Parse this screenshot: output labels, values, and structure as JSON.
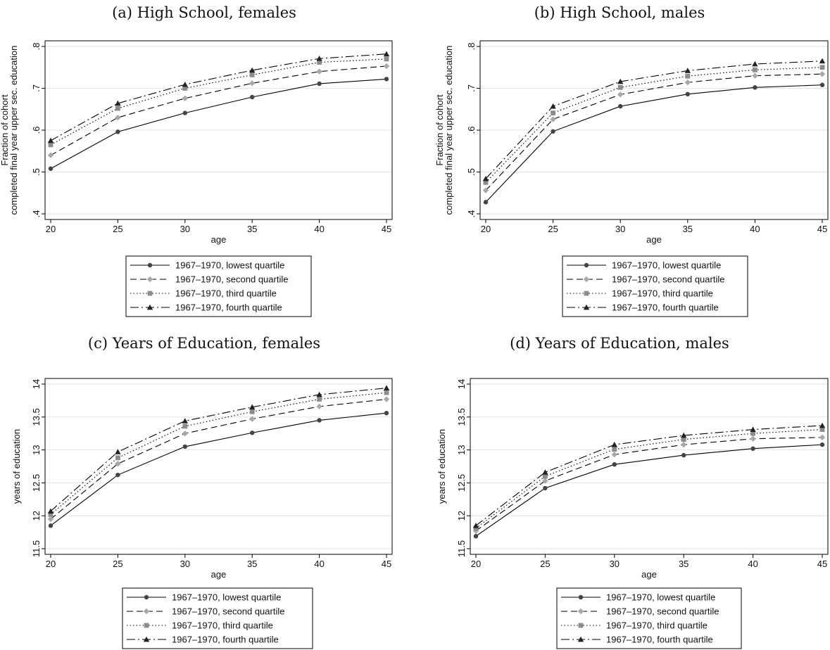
{
  "panels": [
    {
      "title": "(a) High School, females"
    },
    {
      "title": "(b) High School, males"
    },
    {
      "title": "(c) Years of Education, females"
    },
    {
      "title": "(d) Years of Education, males"
    }
  ],
  "chart_data": [
    {
      "type": "line",
      "title": "(a) High School, females",
      "xlabel": "age",
      "ylabel_lines": [
        "Fraction of cohort",
        "completed final year upper sec. education"
      ],
      "x": [
        20,
        25,
        30,
        35,
        40,
        45
      ],
      "xlim": [
        20,
        45
      ],
      "xticks": [
        "20",
        "25",
        "30",
        "35",
        "40",
        "45"
      ],
      "ylim": [
        0.4,
        0.8
      ],
      "yticks": [
        ".4",
        ".5",
        ".6",
        ".7",
        ".8"
      ],
      "ytick_values": [
        0.4,
        0.5,
        0.6,
        0.7,
        0.8
      ],
      "grid": true,
      "legend_position": "bottom",
      "series": [
        {
          "name": "1967–1970, lowest quartile",
          "values": [
            0.508,
            0.596,
            0.641,
            0.679,
            0.711,
            0.722
          ]
        },
        {
          "name": "1967–1970, second quartile",
          "values": [
            0.54,
            0.63,
            0.676,
            0.712,
            0.74,
            0.753
          ]
        },
        {
          "name": "1967–1970, third quartile",
          "values": [
            0.565,
            0.652,
            0.7,
            0.732,
            0.762,
            0.77
          ]
        },
        {
          "name": "1967–1970, fourth quartile",
          "values": [
            0.575,
            0.664,
            0.709,
            0.743,
            0.771,
            0.782
          ]
        }
      ]
    },
    {
      "type": "line",
      "title": "(b) High School, males",
      "xlabel": "age",
      "ylabel_lines": [
        "Fraction of cohort",
        "completed final year upper sec. education"
      ],
      "x": [
        20,
        25,
        30,
        35,
        40,
        45
      ],
      "xlim": [
        20,
        45
      ],
      "xticks": [
        "20",
        "25",
        "30",
        "35",
        "40",
        "45"
      ],
      "ylim": [
        0.4,
        0.8
      ],
      "yticks": [
        ".4",
        ".5",
        ".6",
        ".7",
        ".8"
      ],
      "ytick_values": [
        0.4,
        0.5,
        0.6,
        0.7,
        0.8
      ],
      "grid": true,
      "legend_position": "bottom",
      "series": [
        {
          "name": "1967–1970, lowest quartile",
          "values": [
            0.428,
            0.597,
            0.657,
            0.686,
            0.702,
            0.708
          ]
        },
        {
          "name": "1967–1970, second quartile",
          "values": [
            0.456,
            0.626,
            0.685,
            0.714,
            0.73,
            0.734
          ]
        },
        {
          "name": "1967–1970, third quartile",
          "values": [
            0.475,
            0.641,
            0.702,
            0.729,
            0.744,
            0.75
          ]
        },
        {
          "name": "1967–1970, fourth quartile",
          "values": [
            0.484,
            0.657,
            0.716,
            0.742,
            0.758,
            0.765
          ]
        }
      ]
    },
    {
      "type": "line",
      "title": "(c) Years of Education, females",
      "xlabel": "age",
      "ylabel_lines": [
        "years of education"
      ],
      "x": [
        20,
        25,
        30,
        35,
        40,
        45
      ],
      "xlim": [
        20,
        45
      ],
      "xticks": [
        "20",
        "25",
        "30",
        "35",
        "40",
        "45"
      ],
      "ylim": [
        11.5,
        14
      ],
      "yticks": [
        "11.5",
        "12",
        "12.5",
        "13",
        "13.5",
        "14"
      ],
      "ytick_values": [
        11.5,
        12,
        12.5,
        13,
        13.5,
        14
      ],
      "grid": true,
      "legend_position": "bottom",
      "series": [
        {
          "name": "1967–1970, lowest quartile",
          "values": [
            11.85,
            12.62,
            13.05,
            13.26,
            13.45,
            13.56
          ]
        },
        {
          "name": "1967–1970, second quartile",
          "values": [
            11.95,
            12.79,
            13.25,
            13.47,
            13.66,
            13.77
          ]
        },
        {
          "name": "1967–1970, third quartile",
          "values": [
            12.02,
            12.88,
            13.36,
            13.58,
            13.77,
            13.87
          ]
        },
        {
          "name": "1967–1970, fourth quartile",
          "values": [
            12.07,
            12.97,
            13.44,
            13.65,
            13.84,
            13.94
          ]
        }
      ]
    },
    {
      "type": "line",
      "title": "(d) Years of Education, males",
      "xlabel": "age",
      "ylabel_lines": [
        "years of education"
      ],
      "x": [
        20,
        25,
        30,
        35,
        40,
        45
      ],
      "xlim": [
        20,
        45
      ],
      "xticks": [
        "20",
        "25",
        "30",
        "35",
        "40",
        "45"
      ],
      "ylim": [
        11.5,
        14
      ],
      "yticks": [
        "11.5",
        "12",
        "12.5",
        "13",
        "13.5",
        "14"
      ],
      "ytick_values": [
        11.5,
        12,
        12.5,
        13,
        13.5,
        14
      ],
      "grid": true,
      "legend_position": "bottom",
      "series": [
        {
          "name": "1967–1970, lowest quartile",
          "values": [
            11.69,
            12.42,
            12.78,
            12.92,
            13.02,
            13.08
          ]
        },
        {
          "name": "1967–1970, second quartile",
          "values": [
            11.77,
            12.53,
            12.93,
            13.08,
            13.17,
            13.19
          ]
        },
        {
          "name": "1967–1970, third quartile",
          "values": [
            11.81,
            12.6,
            13.01,
            13.16,
            13.25,
            13.31
          ]
        },
        {
          "name": "1967–1970, fourth quartile",
          "values": [
            11.85,
            12.66,
            13.08,
            13.22,
            13.31,
            13.37
          ]
        }
      ]
    }
  ],
  "styles": {
    "grid_color": "#e3e3e3",
    "series": [
      {
        "stroke": "#000000",
        "dash": "",
        "marker": "circle",
        "marker_color": "#444444"
      },
      {
        "stroke": "#000000",
        "dash": "9,5",
        "marker": "diamond",
        "marker_color": "#a8a8a8"
      },
      {
        "stroke": "#000000",
        "dash": "1.5,3",
        "marker": "square",
        "marker_color": "#8c8c8c"
      },
      {
        "stroke": "#000000",
        "dash": "12,4,2,4",
        "marker": "triangle",
        "marker_color": "#222222"
      }
    ]
  }
}
